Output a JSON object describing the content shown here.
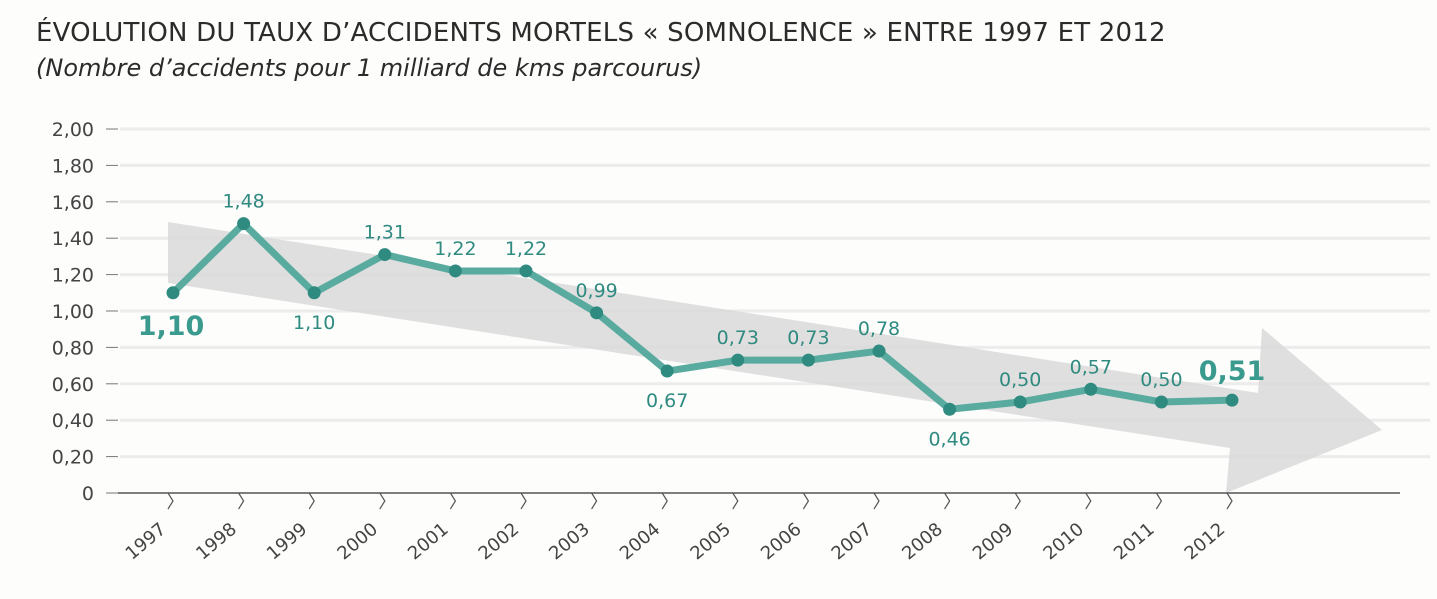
{
  "chart_data": {
    "type": "line",
    "title": "ÉVOLUTION DU TAUX D’ACCIDENTS MORTELS « SOMNOLENCE » ENTRE 1997 ET 2012",
    "subtitle": "(Nombre d’accidents pour 1 milliard de kms parcourus)",
    "xlabel": "",
    "ylabel": "",
    "ylim": [
      0,
      2
    ],
    "yticks": [
      "0",
      "0,20",
      "0,40",
      "0,60",
      "0,80",
      "1,00",
      "1,20",
      "1,40",
      "1,60",
      "1,80",
      "2,00"
    ],
    "categories": [
      "1997",
      "1998",
      "1999",
      "2000",
      "2001",
      "2002",
      "2003",
      "2004",
      "2005",
      "2006",
      "2007",
      "2008",
      "2009",
      "2010",
      "2011",
      "2012"
    ],
    "values": [
      1.1,
      1.48,
      1.1,
      1.31,
      1.22,
      1.22,
      0.99,
      0.67,
      0.73,
      0.73,
      0.78,
      0.46,
      0.5,
      0.57,
      0.5,
      0.51
    ],
    "data_labels": [
      "1,10",
      "1,48",
      "1,10",
      "1,31",
      "1,22",
      "1,22",
      "0,99",
      "0,67",
      "0,73",
      "0,73",
      "0,78",
      "0,46",
      "0,50",
      "0,57",
      "0,50",
      "0,51"
    ],
    "line_color": "#5aab9f",
    "marker_color": "#2f8a80",
    "trend_arrow_color": "#d9d9d9",
    "grid": true,
    "legend": "none"
  }
}
